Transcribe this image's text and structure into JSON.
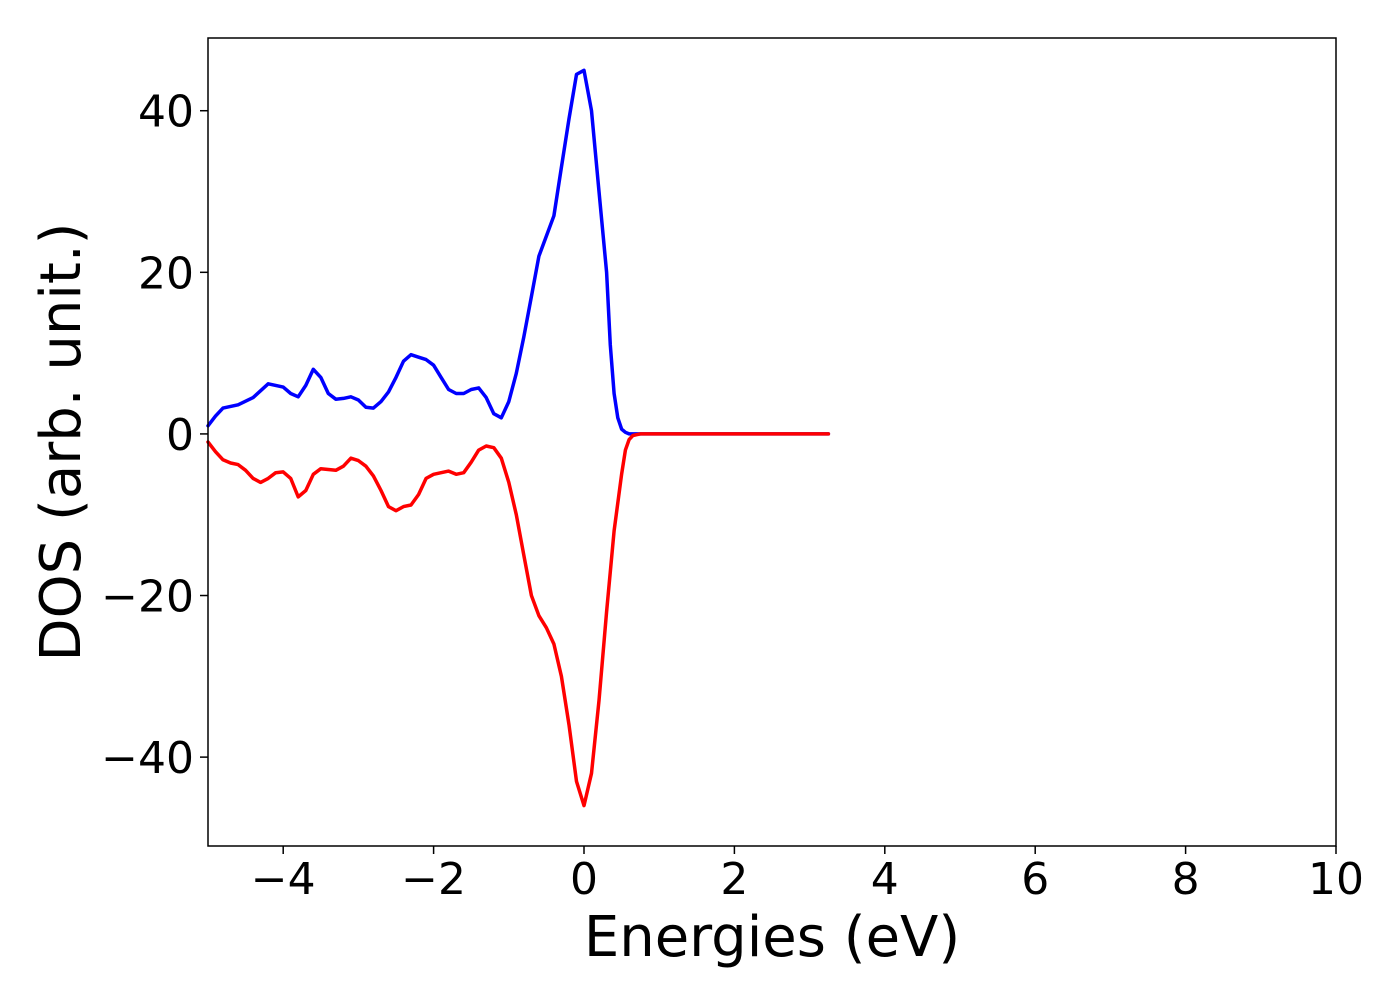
{
  "chart_data": {
    "type": "line",
    "title": "",
    "xlabel": "Energies (eV)",
    "ylabel": "DOS (arb. unit.)",
    "xlim": [
      -5,
      10
    ],
    "ylim": [
      -51,
      49
    ],
    "xticks": [
      -4,
      -2,
      0,
      2,
      4,
      6,
      8,
      10
    ],
    "xtick_labels": [
      "−4",
      "−2",
      "0",
      "2",
      "4",
      "6",
      "8",
      "10"
    ],
    "yticks": [
      -40,
      -20,
      0,
      20,
      40
    ],
    "ytick_labels": [
      "−40",
      "−20",
      "0",
      "20",
      "40"
    ],
    "grid": false,
    "legend": "none",
    "series": [
      {
        "color": "#0000ff",
        "x": [
          -5.0,
          -4.9,
          -4.8,
          -4.6,
          -4.4,
          -4.2,
          -4.0,
          -3.9,
          -3.8,
          -3.7,
          -3.6,
          -3.5,
          -3.4,
          -3.3,
          -3.2,
          -3.1,
          -3.0,
          -2.9,
          -2.8,
          -2.7,
          -2.6,
          -2.5,
          -2.4,
          -2.3,
          -2.2,
          -2.1,
          -2.0,
          -1.9,
          -1.8,
          -1.7,
          -1.6,
          -1.5,
          -1.4,
          -1.3,
          -1.2,
          -1.1,
          -1.0,
          -0.9,
          -0.8,
          -0.7,
          -0.6,
          -0.5,
          -0.4,
          -0.3,
          -0.2,
          -0.1,
          0.0,
          0.1,
          0.2,
          0.3,
          0.35,
          0.4,
          0.45,
          0.5,
          0.55,
          0.6,
          0.65,
          0.7,
          0.75,
          0.8,
          0.85,
          0.9,
          0.95,
          1.0,
          1.05,
          1.1,
          1.2,
          1.3,
          1.5,
          2.0,
          2.5,
          3.0,
          3.25
        ],
        "y": [
          1.0,
          2.2,
          3.2,
          3.6,
          4.5,
          6.2,
          5.8,
          5.0,
          4.6,
          6.0,
          8.0,
          7.0,
          5.0,
          4.3,
          4.4,
          4.6,
          4.2,
          3.3,
          3.2,
          4.0,
          5.2,
          7.0,
          9.0,
          9.8,
          9.5,
          9.2,
          8.5,
          7.0,
          5.5,
          5.0,
          5.0,
          5.5,
          5.7,
          4.5,
          2.5,
          2.0,
          4.0,
          7.5,
          12.0,
          17.0,
          22.0,
          24.5,
          27.0,
          33.0,
          39.0,
          44.5,
          45.0,
          40.0,
          30.0,
          20.0,
          11.0,
          5.0,
          2.0,
          0.6,
          0.2,
          0.0,
          0.0,
          0.0,
          0.0,
          0.0,
          0.0,
          0.0,
          0.0,
          0.0,
          0.0,
          0.0,
          0.0,
          0.0,
          0.0,
          0.0,
          0.0,
          0.0,
          0.0
        ]
      },
      {
        "color": "#ff0000",
        "x": [
          -5.0,
          -4.9,
          -4.8,
          -4.7,
          -4.6,
          -4.5,
          -4.4,
          -4.3,
          -4.2,
          -4.1,
          -4.0,
          -3.9,
          -3.8,
          -3.7,
          -3.6,
          -3.5,
          -3.4,
          -3.3,
          -3.2,
          -3.1,
          -3.0,
          -2.9,
          -2.8,
          -2.7,
          -2.6,
          -2.5,
          -2.4,
          -2.3,
          -2.2,
          -2.1,
          -2.0,
          -1.9,
          -1.8,
          -1.7,
          -1.6,
          -1.5,
          -1.4,
          -1.3,
          -1.2,
          -1.1,
          -1.0,
          -0.9,
          -0.8,
          -0.7,
          -0.6,
          -0.5,
          -0.4,
          -0.3,
          -0.2,
          -0.1,
          0.0,
          0.1,
          0.2,
          0.3,
          0.4,
          0.5,
          0.55,
          0.6,
          0.65,
          0.7,
          0.75,
          0.8,
          0.85,
          0.9,
          0.95,
          1.0,
          1.05,
          1.1,
          1.2,
          1.3,
          1.5,
          2.0,
          2.5,
          3.0,
          3.25
        ],
        "y": [
          -1.0,
          -2.2,
          -3.2,
          -3.6,
          -3.8,
          -4.5,
          -5.5,
          -6.0,
          -5.5,
          -4.8,
          -4.7,
          -5.5,
          -7.8,
          -7.0,
          -5.0,
          -4.3,
          -4.4,
          -4.5,
          -4.0,
          -3.0,
          -3.3,
          -4.0,
          -5.2,
          -7.0,
          -9.0,
          -9.5,
          -9.0,
          -8.8,
          -7.5,
          -5.5,
          -5.0,
          -4.8,
          -4.6,
          -5.0,
          -4.8,
          -3.5,
          -2.0,
          -1.5,
          -1.7,
          -3.0,
          -6.0,
          -10.0,
          -15.0,
          -20.0,
          -22.5,
          -24.0,
          -26.0,
          -30.0,
          -36.0,
          -43.0,
          -46.0,
          -42.0,
          -33.0,
          -22.0,
          -12.0,
          -5.0,
          -2.0,
          -0.7,
          -0.2,
          -0.1,
          0.0,
          0.0,
          0.0,
          0.0,
          0.0,
          0.0,
          0.0,
          0.0,
          0.0,
          0.0,
          0.0,
          0.0,
          0.0,
          0.0,
          0.0
        ]
      }
    ]
  }
}
